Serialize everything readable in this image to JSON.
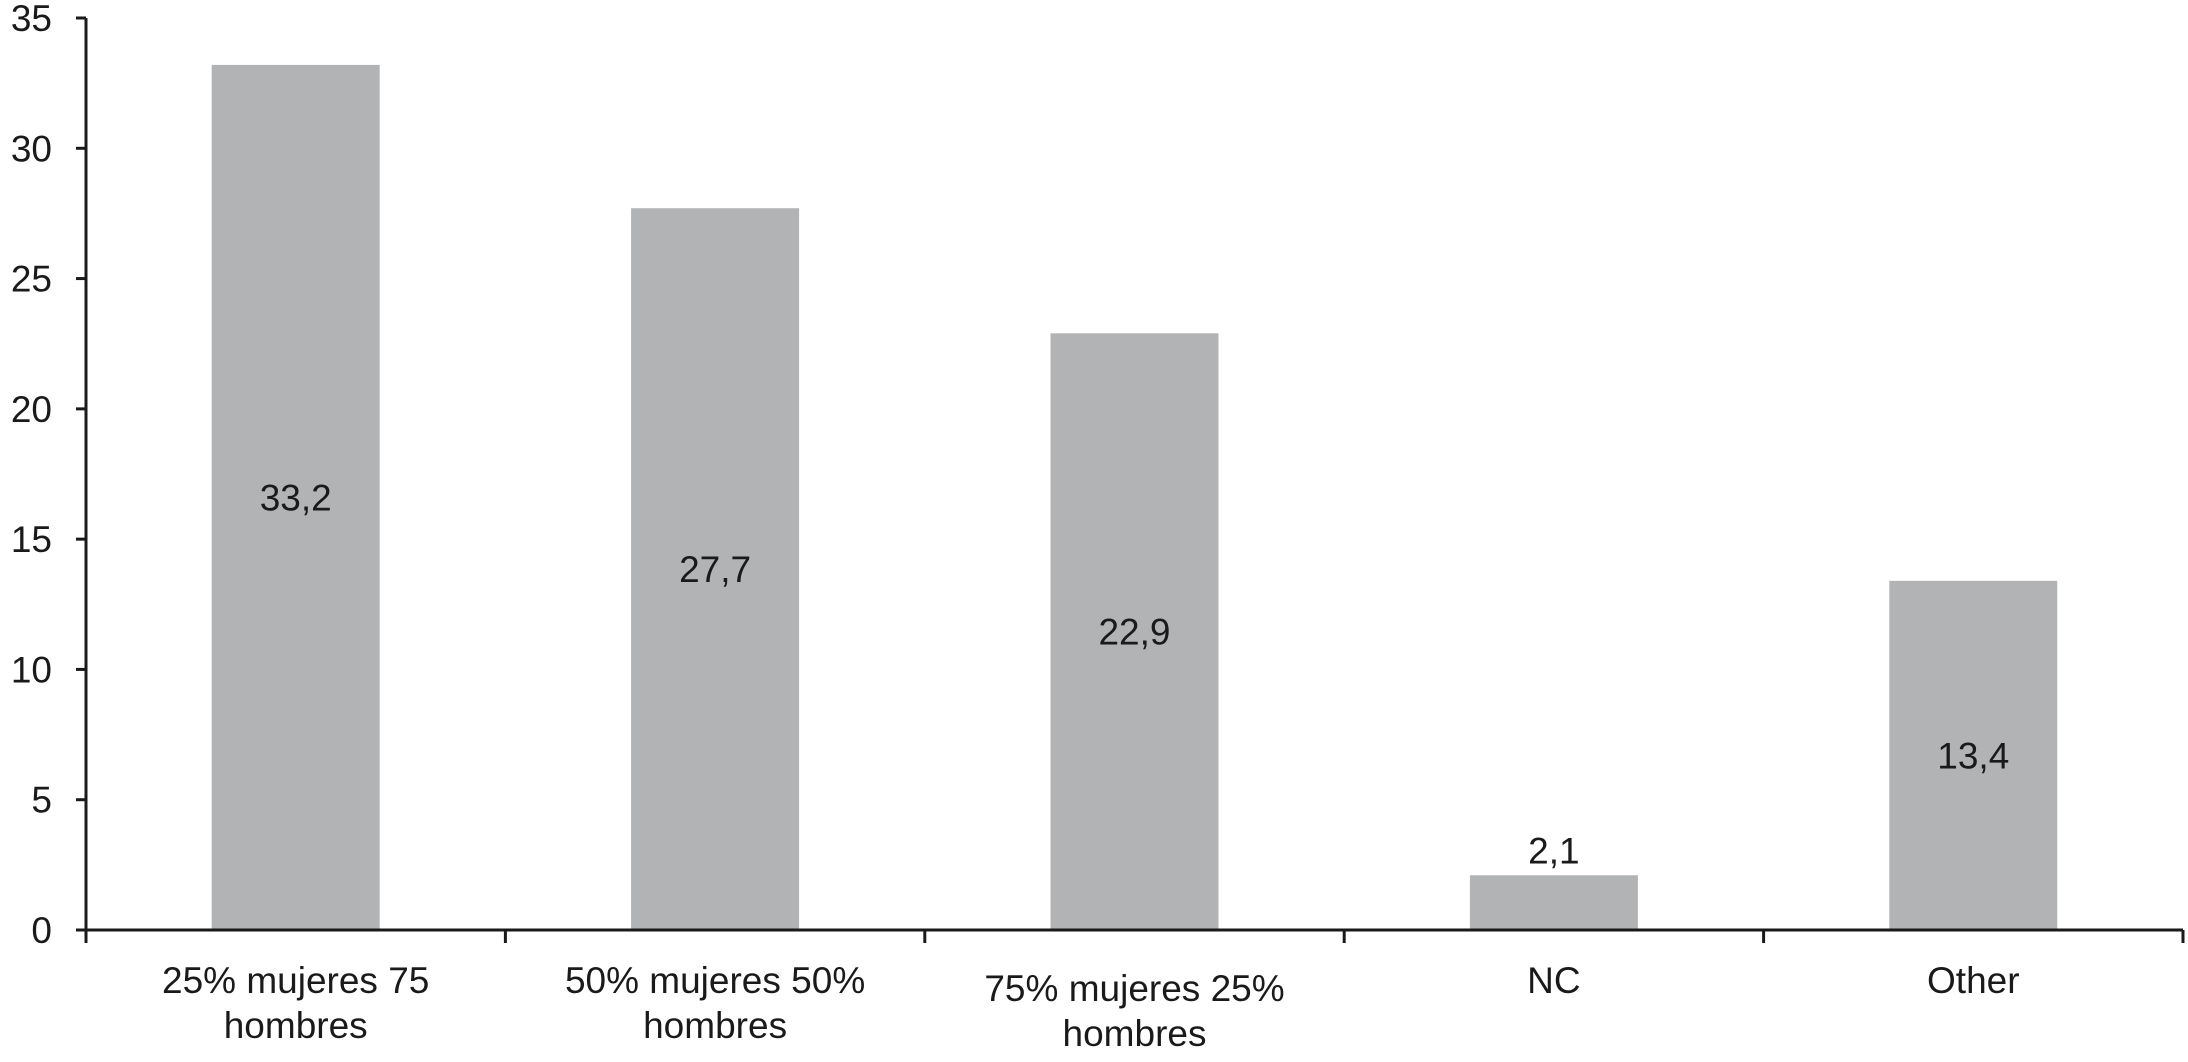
{
  "chart_data": {
    "type": "bar",
    "categories": [
      [
        "25% mujeres 75",
        "hombres"
      ],
      [
        "50% mujeres 50%",
        "hombres"
      ],
      [
        "75% mujeres 25%",
        "hombres"
      ],
      [
        "NC"
      ],
      [
        "Other"
      ]
    ],
    "values": [
      33.2,
      27.7,
      22.9,
      2.1,
      13.4
    ],
    "value_labels": [
      "33,2",
      "27,7",
      "22,9",
      "2,1",
      "13,4"
    ],
    "ylim": [
      0,
      35
    ],
    "yticks": [
      0,
      5,
      10,
      15,
      20,
      25,
      30,
      35
    ],
    "title": "",
    "xlabel": "",
    "ylabel": "",
    "bar_color": "#b2b3b5",
    "grid": false,
    "legend": "none"
  }
}
